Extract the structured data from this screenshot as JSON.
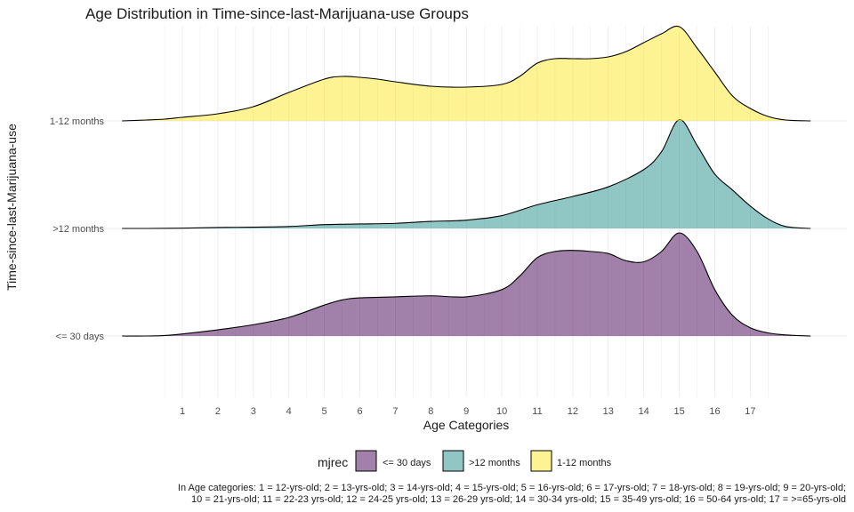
{
  "chart_data": {
    "type": "ridgeline",
    "title": "Age Distribution in Time-since-last-Marijuana-use Groups",
    "xlabel": "Age Categories",
    "ylabel": "Time-since-last-Marijuana-use",
    "x_ticks": [
      "1",
      "2",
      "3",
      "4",
      "5",
      "6",
      "7",
      "8",
      "9",
      "10",
      "11",
      "12",
      "13",
      "14",
      "15",
      "16",
      "17"
    ],
    "xlim": [
      -0.75,
      18.75
    ],
    "grid": true,
    "legend": {
      "title": "mjrec",
      "position": "bottom",
      "items": [
        {
          "label": "<= 30 days",
          "color": "#440154"
        },
        {
          "label": ">12 months",
          "color": "#21908C"
        },
        {
          "label": "1-12 months",
          "color": "#FDE725"
        }
      ]
    },
    "series": [
      {
        "name": "<= 30 days",
        "color": "#440154",
        "x": [
          -0.7,
          0,
          0.5,
          1,
          2,
          3,
          4,
          5,
          5.5,
          6,
          7,
          8,
          9,
          10,
          10.5,
          11,
          11.5,
          12,
          12.5,
          13,
          13.5,
          14,
          14.5,
          15,
          15.5,
          16,
          16.5,
          17,
          17.5,
          18,
          18.7
        ],
        "density": [
          0.0,
          0.0,
          0.005,
          0.02,
          0.06,
          0.11,
          0.18,
          0.3,
          0.35,
          0.37,
          0.38,
          0.39,
          0.38,
          0.45,
          0.58,
          0.76,
          0.82,
          0.83,
          0.82,
          0.8,
          0.73,
          0.72,
          0.82,
          1.0,
          0.82,
          0.45,
          0.2,
          0.08,
          0.03,
          0.01,
          0.0
        ]
      },
      {
        "name": ">12 months",
        "color": "#21908C",
        "x": [
          -0.7,
          0,
          1,
          2,
          3,
          4,
          5,
          6,
          7,
          8,
          9,
          10,
          11,
          12,
          13,
          14,
          14.5,
          15,
          15.5,
          16,
          16.5,
          17,
          17.5,
          18,
          18.7
        ],
        "density": [
          0.0,
          0.0,
          0.005,
          0.015,
          0.02,
          0.03,
          0.06,
          0.07,
          0.08,
          0.11,
          0.13,
          0.2,
          0.37,
          0.5,
          0.65,
          0.92,
          1.2,
          1.7,
          1.3,
          0.85,
          0.6,
          0.35,
          0.15,
          0.03,
          0.0
        ]
      },
      {
        "name": "1-12 months",
        "color": "#FDE725",
        "x": [
          -0.7,
          0,
          0.5,
          1,
          2,
          3,
          4,
          5,
          5.5,
          6,
          6.5,
          7,
          8,
          9,
          10,
          10.5,
          11,
          11.5,
          12,
          12.5,
          13,
          13.5,
          14,
          14.5,
          15,
          15.5,
          16,
          16.5,
          17,
          17.5,
          18,
          18.7
        ],
        "density": [
          0.0,
          0.01,
          0.02,
          0.04,
          0.08,
          0.16,
          0.32,
          0.47,
          0.5,
          0.49,
          0.47,
          0.44,
          0.39,
          0.38,
          0.41,
          0.5,
          0.65,
          0.7,
          0.7,
          0.7,
          0.72,
          0.78,
          0.88,
          0.98,
          1.06,
          0.82,
          0.55,
          0.28,
          0.14,
          0.05,
          0.01,
          0.0
        ]
      }
    ],
    "caption_line1": "In Age categories: 1 = 12-yrs-old; 2 = 13-yrs-old; 3 = 14-yrs-old; 4 = 15-yrs-old; 5 = 16-yrs-old; 6 = 17-yrs-old; 7 = 18-yrs-old; 8 = 19-yrs-old; 9 = 20-yrs-old;",
    "caption_line2": "10 = 21-yrs-old; 11 = 22-23 yrs-old; 12 = 24-25 yrs-old; 13 = 26-29 yrs-old; 14 = 30-34 yrs-old; 15 = 35-49 yrs-old; 16 = 50-64 yrs-old; 17 = >=65-yrs-old"
  }
}
